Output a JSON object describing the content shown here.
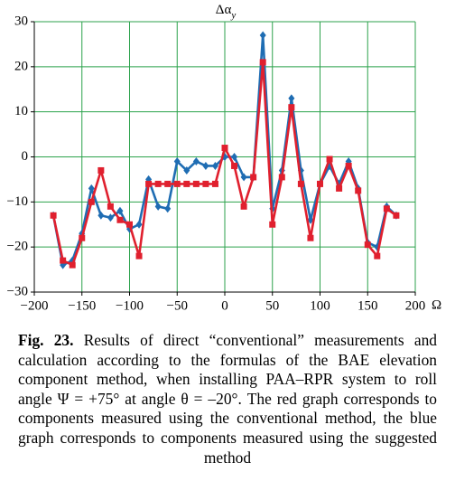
{
  "chart_data": {
    "type": "line",
    "ylabel": "Δα",
    "ylabel_subscript": "y",
    "xlabel": "Ω",
    "x": [
      -180,
      -170,
      -160,
      -150,
      -140,
      -130,
      -120,
      -110,
      -100,
      -90,
      -80,
      -70,
      -60,
      -50,
      -40,
      -30,
      -20,
      -10,
      0,
      10,
      20,
      30,
      40,
      50,
      60,
      70,
      80,
      90,
      100,
      110,
      120,
      130,
      140,
      150,
      160,
      170,
      180
    ],
    "series": [
      {
        "name": "suggested method",
        "color": "#1f6db3",
        "marker": "diamond",
        "values": [
          -13,
          -24,
          -23,
          -17,
          -7,
          -13,
          -13.5,
          -12,
          -16,
          -15,
          -5,
          -11,
          -11.5,
          -1,
          -3,
          -1,
          -2,
          -2,
          0,
          0,
          -4.5,
          -4.5,
          27,
          -11.5,
          -3,
          13,
          -3,
          -14,
          -6,
          -2,
          -6,
          -1,
          -7,
          -19,
          -20,
          -11,
          -13
        ]
      },
      {
        "name": "conventional method",
        "color": "#e0202e",
        "marker": "square",
        "values": [
          -13,
          -23,
          -24,
          -18,
          -10,
          -3,
          -11,
          -14,
          -15,
          -22,
          -6,
          -6,
          -6,
          -6,
          -6,
          -6,
          -6,
          -6,
          2,
          -2,
          -11,
          -4.5,
          21,
          -15,
          -4.5,
          11,
          -6,
          -18,
          -6,
          -0.5,
          -7,
          -2,
          -7.5,
          -19.5,
          -22,
          -11.5,
          -13
        ]
      }
    ],
    "xlim": [
      -200,
      200
    ],
    "xticks": [
      {
        "value": -200,
        "label": "−200"
      },
      {
        "value": -150,
        "label": "−150"
      },
      {
        "value": -100,
        "label": "−100"
      },
      {
        "value": -50,
        "label": "−50"
      },
      0,
      50,
      100,
      150,
      200
    ],
    "ylim": [
      -30,
      30
    ],
    "yticks": [
      {
        "value": -30,
        "label": "−30"
      },
      {
        "value": -20,
        "label": "−20"
      },
      {
        "value": -10,
        "label": "−10"
      },
      0,
      10,
      20,
      30
    ],
    "grid": true,
    "grid_color": "#2ca24c"
  },
  "caption": {
    "label": "Fig. 23.",
    "text": "Results of direct “conventional” measurements and calculation according to the formulas of the BAE elevation component method, when installing PAA–RPR system to roll angle Ψ = +75° at angle θ = –20°. The red graph corresponds to components measured using the conventional method, the blue graph corresponds to components measured using the suggested method"
  }
}
